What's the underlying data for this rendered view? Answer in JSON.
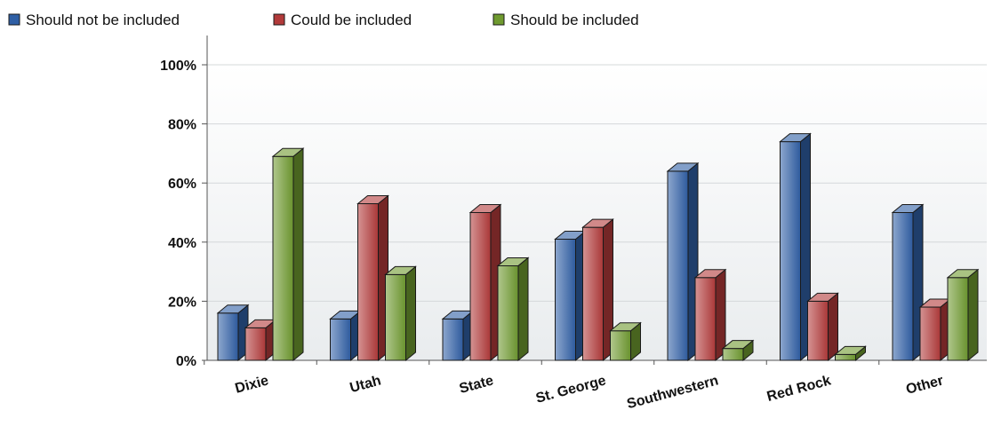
{
  "chart_data": {
    "type": "bar",
    "title": "",
    "xlabel": "",
    "ylabel": "",
    "ylim": [
      0,
      100
    ],
    "y_ticks": [
      "0%",
      "20%",
      "40%",
      "60%",
      "80%",
      "100%"
    ],
    "y_tick_values": [
      0,
      20,
      40,
      60,
      80,
      100
    ],
    "grid": true,
    "legend_position": "top-left",
    "categories": [
      "Dixie",
      "Utah",
      "State",
      "St. George",
      "Southwestern",
      "Red Rock",
      "Other"
    ],
    "series": [
      {
        "name": "Should not be included",
        "color": "#2f5fa5",
        "values": [
          16,
          14,
          14,
          41,
          64,
          74,
          50
        ]
      },
      {
        "name": "Could be included",
        "color": "#b23a3a",
        "values": [
          11,
          53,
          50,
          45,
          28,
          20,
          18
        ]
      },
      {
        "name": "Should be included",
        "color": "#6f9a2f",
        "values": [
          69,
          29,
          32,
          10,
          4,
          2,
          28
        ]
      }
    ]
  }
}
